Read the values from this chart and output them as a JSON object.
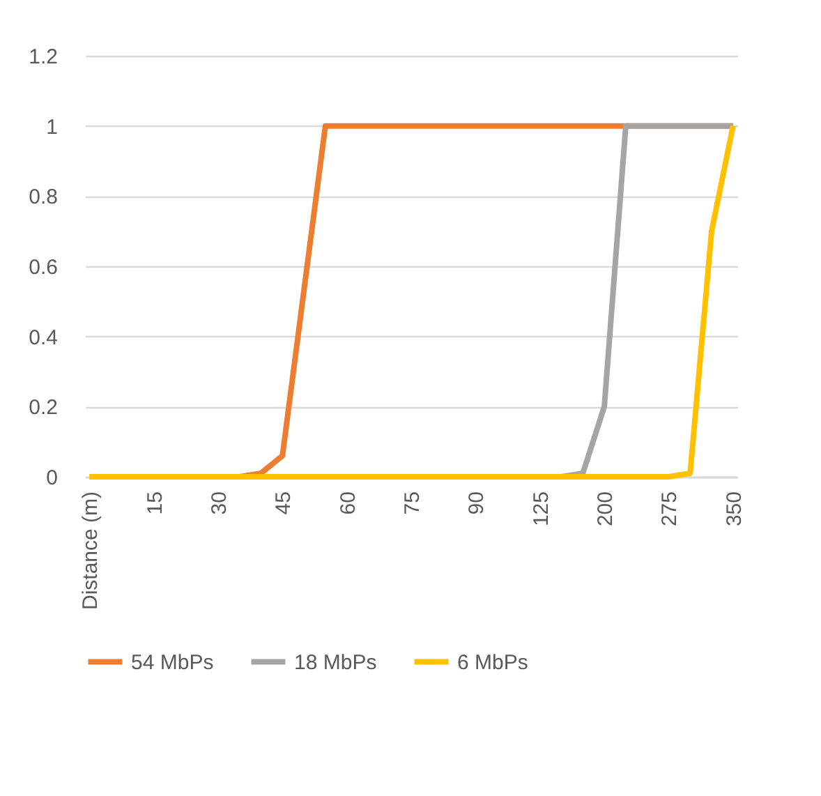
{
  "chart_data": {
    "type": "line",
    "categories": [
      "Distance (m)",
      null,
      null,
      "15",
      null,
      null,
      "30",
      null,
      null,
      "45",
      null,
      null,
      "60",
      null,
      null,
      "75",
      null,
      null,
      "90",
      null,
      null,
      "125",
      null,
      null,
      "200",
      null,
      null,
      "275",
      null,
      null,
      "350"
    ],
    "series": [
      {
        "name": "54 MbPs",
        "color": "#ed7d31",
        "values": [
          null,
          null,
          null,
          null,
          null,
          null,
          0,
          0,
          0.01,
          0.06,
          0.53,
          1,
          1,
          1,
          1,
          1,
          1,
          1,
          1,
          1,
          1,
          1,
          1,
          1,
          1,
          1,
          1,
          1,
          1,
          1,
          1
        ]
      },
      {
        "name": "18 MbPs",
        "color": "#a5a5a5",
        "values": [
          null,
          null,
          null,
          null,
          null,
          null,
          null,
          null,
          null,
          null,
          null,
          null,
          null,
          null,
          null,
          null,
          null,
          null,
          null,
          null,
          null,
          0,
          0,
          0.01,
          0.2,
          1,
          1,
          1,
          1,
          1,
          1
        ]
      },
      {
        "name": "6 MbPs",
        "color": "#ffc000",
        "values": [
          0,
          0,
          0,
          0,
          0,
          0,
          0,
          0,
          0,
          0,
          0,
          0,
          0,
          0,
          0,
          0,
          0,
          0,
          0,
          0,
          0,
          0,
          0,
          0,
          0,
          0,
          0,
          0,
          0.01,
          0.7,
          1
        ]
      }
    ],
    "ylim": [
      0,
      1.2
    ],
    "yticks": [
      0,
      0.2,
      0.4,
      0.6,
      0.8,
      1,
      1.2
    ],
    "grid": "y",
    "legend": "bottom",
    "marker": "none",
    "line_style": "solid"
  }
}
